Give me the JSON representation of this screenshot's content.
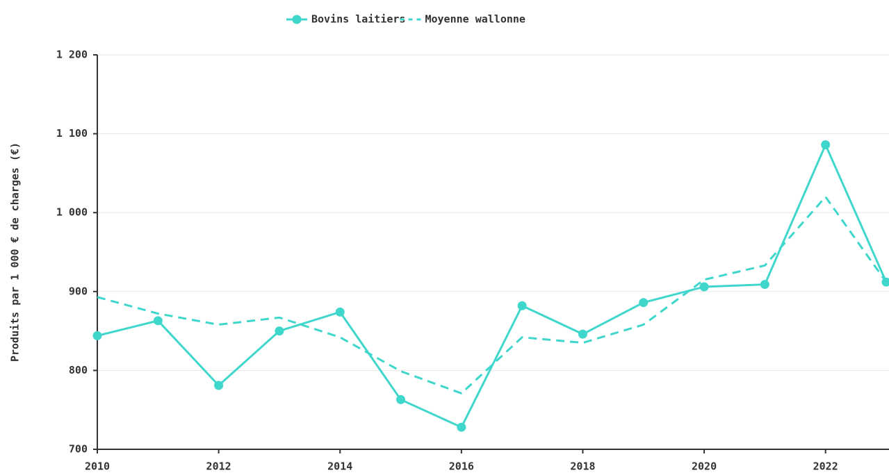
{
  "chart_data": {
    "type": "line",
    "y_label": "Produits par 1 000 € de charges (€)",
    "x": [
      2010,
      2011,
      2012,
      2013,
      2014,
      2015,
      2016,
      2017,
      2018,
      2019,
      2020,
      2021,
      2022,
      2023
    ],
    "series": [
      {
        "name": "Bovins laitiers",
        "color": "#3fd6cc",
        "line_style": "solid",
        "markers": true,
        "values": [
          844,
          863,
          781,
          850,
          874,
          763,
          728,
          882,
          846,
          886,
          906,
          909,
          1086,
          912
        ]
      },
      {
        "name": "Moyenne wallonne",
        "color": "#3fd6cc",
        "line_style": "dashed",
        "markers": false,
        "values": [
          893,
          872,
          858,
          867,
          842,
          799,
          771,
          842,
          835,
          858,
          915,
          933,
          1020,
          912
        ]
      }
    ],
    "xlim": [
      2010,
      2023
    ],
    "xticks": [
      2010,
      2012,
      2014,
      2016,
      2018,
      2020,
      2022
    ],
    "ylim": [
      700,
      1200
    ],
    "yticks": [
      700,
      800,
      900,
      {
        "value": 1000,
        "label": "1 000"
      },
      {
        "value": 1100,
        "label": "1 100"
      },
      {
        "value": 1200,
        "label": "1 200"
      }
    ],
    "grid": true,
    "legend": "top"
  }
}
